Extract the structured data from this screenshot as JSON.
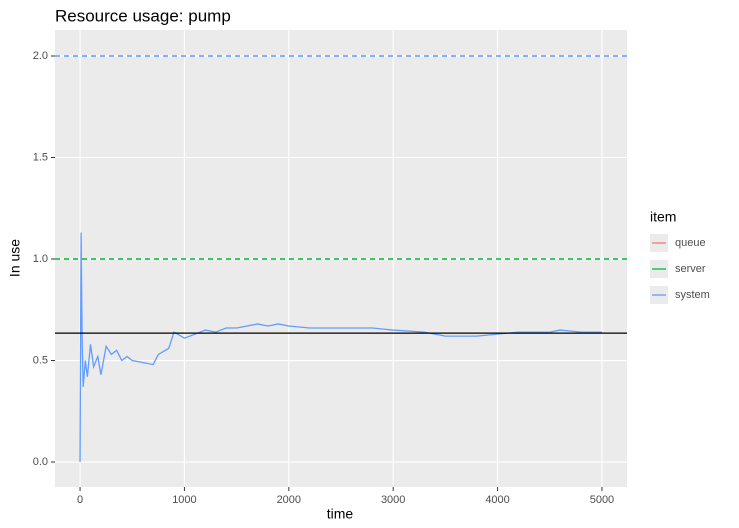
{
  "chart_data": {
    "type": "line",
    "title": "Resource usage: pump",
    "x_label": "time",
    "y_label": "In use",
    "x": [
      0,
      10,
      20,
      30,
      50,
      70,
      100,
      130,
      170,
      200,
      250,
      300,
      350,
      400,
      450,
      500,
      600,
      700,
      750,
      850,
      900,
      1000,
      1100,
      1200,
      1300,
      1400,
      1500,
      1600,
      1700,
      1800,
      1900,
      2000,
      2200,
      2500,
      2800,
      3000,
      3300,
      3500,
      3800,
      4000,
      4200,
      4500,
      4600,
      4800,
      5000
    ],
    "series": [
      {
        "name": "queue",
        "color": "#F8766D",
        "values": [
          null,
          null,
          null,
          null,
          null,
          null,
          null,
          null,
          null,
          null,
          null,
          null,
          null,
          null,
          null,
          null,
          null,
          null,
          null,
          null,
          null,
          null,
          null,
          null,
          null,
          null,
          null,
          null,
          null,
          null,
          null,
          null,
          null,
          null,
          null,
          null,
          null,
          null,
          null,
          null,
          null,
          null,
          null,
          null,
          null
        ]
      },
      {
        "name": "server",
        "color": "#00BA38",
        "values": [
          null,
          null,
          null,
          null,
          null,
          null,
          null,
          null,
          null,
          null,
          null,
          null,
          null,
          null,
          null,
          null,
          null,
          null,
          null,
          null,
          null,
          null,
          null,
          null,
          null,
          null,
          null,
          null,
          null,
          null,
          null,
          null,
          null,
          null,
          null,
          null,
          null,
          null,
          null,
          null,
          null,
          null,
          null,
          null,
          null
        ]
      },
      {
        "name": "system",
        "color": "#619CFF",
        "values": [
          0,
          1.13,
          0.6,
          0.37,
          0.5,
          0.42,
          0.58,
          0.47,
          0.52,
          0.43,
          0.57,
          0.53,
          0.55,
          0.5,
          0.52,
          0.5,
          0.49,
          0.48,
          0.53,
          0.56,
          0.64,
          0.61,
          0.63,
          0.65,
          0.64,
          0.66,
          0.66,
          0.67,
          0.68,
          0.67,
          0.68,
          0.67,
          0.66,
          0.66,
          0.66,
          0.65,
          0.64,
          0.62,
          0.62,
          0.63,
          0.64,
          0.64,
          0.65,
          0.64,
          0.64
        ]
      }
    ],
    "capacity_lines": [
      {
        "value": 1,
        "color": "#00BA38"
      },
      {
        "value": 2,
        "color": "#619CFF"
      }
    ],
    "mean_line": {
      "value": 0.635,
      "color": "#000000"
    },
    "legend_title": "item",
    "xlim": [
      -240,
      5240
    ],
    "ylim": [
      -0.123,
      2.128
    ],
    "xticks": [
      0,
      1000,
      2000,
      3000,
      4000,
      5000
    ],
    "yticks": [
      {
        "value": 0,
        "label": "0.0"
      },
      0.5,
      {
        "value": 1,
        "label": "1.0"
      },
      1.5,
      {
        "value": 2,
        "label": "2.0"
      }
    ],
    "grid": true
  }
}
